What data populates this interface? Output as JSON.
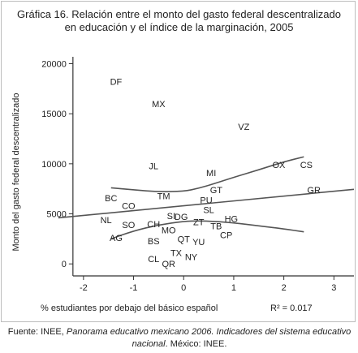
{
  "chart_data": {
    "type": "scatter",
    "title_lines": [
      "Gráfica 16. Relación entre el monto del gasto federal descentralizado",
      "en educación y el índice de la marginación, 2005"
    ],
    "xlabel": "% estudiantes por debajo del básico español",
    "ylabel": "Monto del gasto federal descentralizado",
    "annotation": "R² = 0.017",
    "xlim": [
      -2.5,
      3.4
    ],
    "ylim": [
      -1200,
      21500
    ],
    "x_ticks": [
      -2,
      -1,
      0,
      1,
      2,
      3
    ],
    "x_tick_labels": [
      "-2",
      "-1",
      "0",
      "1",
      "2",
      "3"
    ],
    "y_ticks": [
      0,
      5000,
      10000,
      15000,
      20000
    ],
    "y_tick_labels": [
      "0",
      "5000",
      "10000",
      "15000",
      "20000"
    ],
    "grid": false,
    "legend": "none",
    "points": [
      {
        "label": "DF",
        "x": -1.35,
        "y": 18200
      },
      {
        "label": "MX",
        "x": -0.5,
        "y": 16000
      },
      {
        "label": "VZ",
        "x": 1.2,
        "y": 13700
      },
      {
        "label": "JL",
        "x": -0.6,
        "y": 9800
      },
      {
        "label": "MI",
        "x": 0.55,
        "y": 9100
      },
      {
        "label": "OX",
        "x": 1.9,
        "y": 9900
      },
      {
        "label": "CS",
        "x": 2.45,
        "y": 9900
      },
      {
        "label": "GR",
        "x": 2.6,
        "y": 7400
      },
      {
        "label": "GT",
        "x": 0.65,
        "y": 7400
      },
      {
        "label": "TM",
        "x": -0.4,
        "y": 6800
      },
      {
        "label": "BC",
        "x": -1.45,
        "y": 6600
      },
      {
        "label": "PU",
        "x": 0.45,
        "y": 6400
      },
      {
        "label": "CO",
        "x": -1.1,
        "y": 5800
      },
      {
        "label": "SL",
        "x": 0.5,
        "y": 5400
      },
      {
        "label": "SI",
        "x": -0.25,
        "y": 4800
      },
      {
        "label": "DG",
        "x": -0.05,
        "y": 4700
      },
      {
        "label": "HG",
        "x": 0.95,
        "y": 4500
      },
      {
        "label": "NL",
        "x": -1.55,
        "y": 4400
      },
      {
        "label": "ZT",
        "x": 0.3,
        "y": 4200
      },
      {
        "label": "SO",
        "x": -1.1,
        "y": 3900
      },
      {
        "label": "CH",
        "x": -0.6,
        "y": 4000
      },
      {
        "label": "TB",
        "x": 0.65,
        "y": 3800
      },
      {
        "label": "MO",
        "x": -0.3,
        "y": 3400
      },
      {
        "label": "AG",
        "x": -1.35,
        "y": 2600
      },
      {
        "label": "CP",
        "x": 0.85,
        "y": 2900
      },
      {
        "label": "QT",
        "x": 0.0,
        "y": 2500
      },
      {
        "label": "BS",
        "x": -0.6,
        "y": 2300
      },
      {
        "label": "YU",
        "x": 0.3,
        "y": 2200
      },
      {
        "label": "TX",
        "x": -0.15,
        "y": 1100
      },
      {
        "label": "NY",
        "x": 0.15,
        "y": 700
      },
      {
        "label": "CL",
        "x": -0.6,
        "y": 500
      },
      {
        "label": "QR",
        "x": -0.3,
        "y": 0
      }
    ],
    "trend_line": {
      "x": [
        -2.5,
        3.4
      ],
      "y": [
        4600,
        7450
      ]
    },
    "confidence_upper": {
      "x": [
        -1.45,
        -1.0,
        -0.5,
        0.0,
        0.3,
        0.6,
        1.0,
        1.5,
        2.0,
        2.4
      ],
      "y": [
        7600,
        7400,
        7200,
        7250,
        7550,
        8000,
        8650,
        9400,
        10200,
        10700
      ]
    },
    "confidence_lower": {
      "x": [
        -1.45,
        -1.0,
        -0.5,
        0.0,
        0.3,
        0.6,
        1.0,
        1.5,
        2.0,
        2.4
      ],
      "y": [
        2500,
        3300,
        3900,
        4250,
        4300,
        4250,
        4100,
        3800,
        3500,
        3200
      ]
    }
  },
  "source_note": {
    "prefix": "Fuente: INEE, ",
    "italic1": "Panorama educativo mexicano 2006. Indicadores del sistema educativo",
    "italic2": "nacional",
    "suffix": ". México: INEE."
  }
}
